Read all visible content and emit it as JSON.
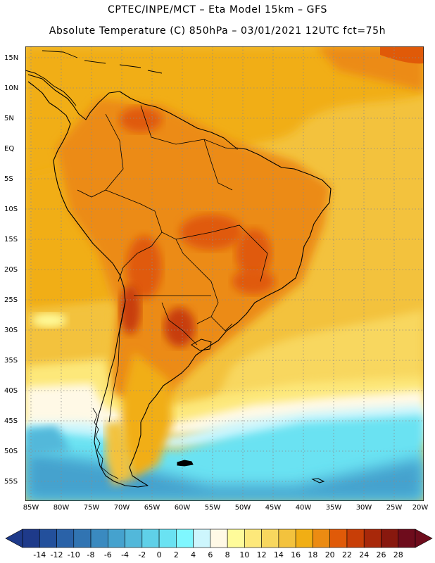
{
  "title": {
    "line1": "CPTEC/INPE/MCT –  Eta Model 15km – GFS",
    "line2": "Absolute Temperature (C) 850hPa – 03/01/2021 12UTC fct=75h"
  },
  "map": {
    "type": "filled-contour",
    "region": "South America",
    "lat_labels": [
      "15N",
      "10N",
      "5N",
      "EQ",
      "5S",
      "10S",
      "15S",
      "20S",
      "25S",
      "30S",
      "35S",
      "40S",
      "45S",
      "50S",
      "55S"
    ],
    "lon_labels": [
      "85W",
      "80W",
      "75W",
      "70W",
      "65W",
      "60W",
      "55W",
      "50W",
      "45W",
      "40W",
      "35W",
      "30W",
      "25W",
      "20W"
    ],
    "grid": "dotted"
  },
  "colorbar": {
    "labels": [
      "-14",
      "-12",
      "-10",
      "-8",
      "-6",
      "-4",
      "-2",
      "0",
      "2",
      "4",
      "6",
      "8",
      "10",
      "12",
      "14",
      "16",
      "18",
      "20",
      "22",
      "24",
      "26",
      "28"
    ],
    "colors": [
      "#1e3a8a",
      "#23509c",
      "#2a62a8",
      "#3174b2",
      "#3a8ac0",
      "#45a2ce",
      "#52b8da",
      "#5fd0e8",
      "#6ae2f2",
      "#7ff7ff",
      "#cdf6fd",
      "#fff9e6",
      "#fffb9a",
      "#fde87a",
      "#f8d75e",
      "#f3c23d",
      "#f1ae14",
      "#ec8b12",
      "#e05a08",
      "#c83e07",
      "#a8280a",
      "#88180e",
      "#6e0c1c"
    ]
  }
}
